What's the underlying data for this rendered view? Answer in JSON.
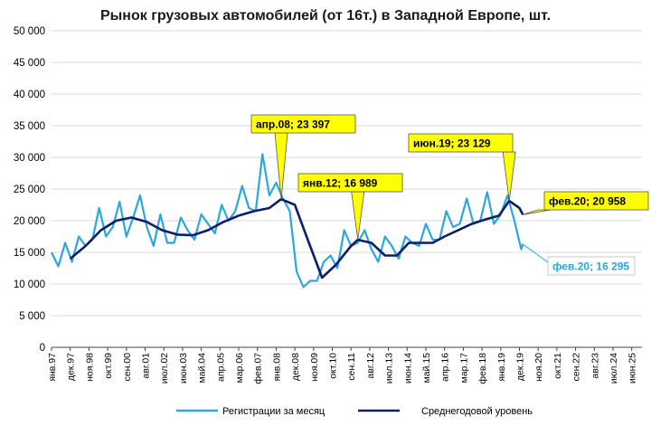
{
  "chart_data": {
    "type": "line",
    "title": "Рынок грузовых автомобилей (от 16т.) в Западной Европе, шт.",
    "xlabel": "",
    "ylabel": "",
    "ylim": [
      0,
      50000
    ],
    "yticks": [
      0,
      5000,
      10000,
      15000,
      20000,
      25000,
      30000,
      35000,
      40000,
      45000,
      50000
    ],
    "ytick_labels": [
      "0",
      "5 000",
      "10 000",
      "15 000",
      "20 000",
      "25 000",
      "30 000",
      "35 000",
      "40 000",
      "45 000",
      "50 000"
    ],
    "x_start": "янв.97",
    "x_end": "дек.25",
    "xtick_labels": [
      "янв.97",
      "дек.97",
      "ноя.98",
      "окт.99",
      "сен.00",
      "авг.01",
      "июл.02",
      "июн.03",
      "май.04",
      "апр.05",
      "мар.06",
      "фев.07",
      "янв.08",
      "дек.08",
      "ноя.09",
      "окт.10",
      "сен.11",
      "авг.12",
      "июл.13",
      "июн.14",
      "май.15",
      "апр.16",
      "мар.17",
      "фев.18",
      "янв.19",
      "дек.19",
      "ноя.20",
      "окт.21",
      "сен.22",
      "авг.23",
      "июл.24",
      "июн.25"
    ],
    "grid": true,
    "legend_position": "bottom",
    "series": [
      {
        "name": "Регистрации за месяц",
        "color": "#29a8e0",
        "description_points": "monthly values, янв.97 – фев.20 (every 4th month shown)",
        "x": [
          "янв.97",
          "май.97",
          "сен.97",
          "янв.98",
          "май.98",
          "сен.98",
          "янв.99",
          "май.99",
          "сен.99",
          "янв.00",
          "май.00",
          "сен.00",
          "янв.01",
          "май.01",
          "сен.01",
          "янв.02",
          "май.02",
          "сен.02",
          "янв.03",
          "май.03",
          "сен.03",
          "янв.04",
          "май.04",
          "сен.04",
          "янв.05",
          "май.05",
          "сен.05",
          "янв.06",
          "май.06",
          "сен.06",
          "янв.07",
          "май.07",
          "сен.07",
          "янв.08",
          "май.08",
          "сен.08",
          "янв.09",
          "май.09",
          "сен.09",
          "янв.10",
          "май.10",
          "сен.10",
          "янв.11",
          "май.11",
          "сен.11",
          "янв.12",
          "май.12",
          "сен.12",
          "янв.13",
          "май.13",
          "сен.13",
          "янв.14",
          "май.14",
          "сен.14",
          "янв.15",
          "май.15",
          "сен.15",
          "янв.16",
          "май.16",
          "сен.16",
          "янв.17",
          "май.17",
          "сен.17",
          "янв.18",
          "май.18",
          "сен.18",
          "янв.19",
          "май.19",
          "сен.19",
          "янв.20",
          "фев.20"
        ],
        "values": [
          15000,
          12800,
          16500,
          13500,
          17500,
          16000,
          17000,
          22000,
          17500,
          19000,
          23000,
          17500,
          20500,
          24000,
          19000,
          16000,
          21000,
          16500,
          16500,
          20500,
          18500,
          17000,
          21000,
          19500,
          18000,
          22500,
          20000,
          21500,
          25500,
          22000,
          21500,
          30500,
          24000,
          26000,
          23500,
          21500,
          12000,
          9500,
          10500,
          10500,
          13500,
          14500,
          12500,
          18500,
          16000,
          16500,
          18500,
          15500,
          13500,
          17500,
          16000,
          14000,
          17500,
          16500,
          16000,
          19500,
          17000,
          17000,
          21500,
          19000,
          19500,
          23500,
          19500,
          20000,
          24500,
          19500,
          21000,
          24000,
          20000,
          15500,
          16295
        ]
      },
      {
        "name": "Среднегодовой уровень",
        "color": "#0d1d6b",
        "x": [
          "дек.97",
          "сен.98",
          "июн.99",
          "мар.00",
          "дек.00",
          "сен.01",
          "июн.02",
          "мар.03",
          "дек.03",
          "сен.04",
          "июн.05",
          "мар.06",
          "дек.06",
          "сен.07",
          "апр.08",
          "дек.08",
          "сен.09",
          "апр.10",
          "дек.10",
          "сен.11",
          "янв.12",
          "сен.12",
          "май.13",
          "дек.13",
          "июл.14",
          "фев.15",
          "сен.15",
          "апр.16",
          "дек.16",
          "авг.17",
          "апр.18",
          "дек.18",
          "июн.19",
          "дек.19",
          "фев.20"
        ],
        "values": [
          14000,
          16000,
          18500,
          20000,
          20500,
          19800,
          18500,
          17800,
          17700,
          18500,
          19800,
          20800,
          21500,
          22000,
          23397,
          22500,
          16000,
          11000,
          13000,
          16000,
          16989,
          16500,
          14500,
          14500,
          16500,
          16500,
          16500,
          17500,
          18500,
          19500,
          20200,
          20800,
          23129,
          22000,
          20958
        ]
      }
    ],
    "annotations": [
      {
        "label": "апр.08;  23 397",
        "style": "yellow-callout",
        "x": "апр.08",
        "y": 23397
      },
      {
        "label": "янв.12;  16 989",
        "style": "yellow-callout",
        "x": "янв.12",
        "y": 16989
      },
      {
        "label": "июн.19;  23 129",
        "style": "yellow-callout",
        "x": "июн.19",
        "y": 23129
      },
      {
        "label": "фев.20;  20 958",
        "style": "yellow-callout",
        "x": "фев.20",
        "y": 20958
      },
      {
        "label": "фев.20; 16 295",
        "style": "blue-text",
        "x": "фев.20",
        "y": 16295
      }
    ]
  }
}
